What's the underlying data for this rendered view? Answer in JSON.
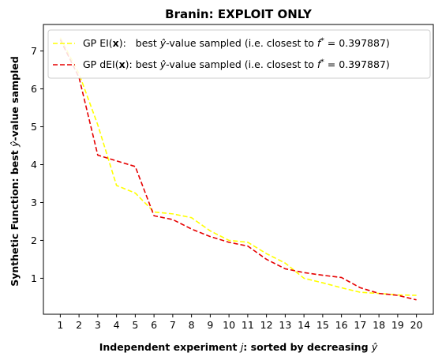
{
  "chart_data": {
    "type": "line",
    "title": "Branin: EXPLOIT ONLY",
    "xlabel": {
      "prefix": "Independent experiment ",
      "var": "j",
      "middle": ": sorted by decreasing ",
      "yhat": "ŷ"
    },
    "ylabel": {
      "prefix": "Synthetic Function: best ",
      "yhat": "ŷ",
      "suffix": "-value sampled"
    },
    "x": [
      1,
      2,
      3,
      4,
      5,
      6,
      7,
      8,
      9,
      10,
      11,
      12,
      13,
      14,
      15,
      16,
      17,
      18,
      19,
      20
    ],
    "xticks": [
      "1",
      "2",
      "3",
      "4",
      "5",
      "6",
      "7",
      "8",
      "9",
      "10",
      "11",
      "12",
      "13",
      "14",
      "15",
      "16",
      "17",
      "18",
      "19",
      "20"
    ],
    "yticks": [
      "1",
      "2",
      "3",
      "4",
      "5",
      "6",
      "7"
    ],
    "yticks_values": [
      1,
      2,
      3,
      4,
      5,
      6,
      7
    ],
    "xlim": [
      0.1,
      20.9
    ],
    "ylim": [
      0.05,
      7.7
    ],
    "grid": false,
    "legend_position": "top-right",
    "series": [
      {
        "name": "GP EI(x): best ŷ-value sampled (i.e. closest to f* = 0.397887)",
        "legend": {
          "gp": "GP EI(",
          "x": "x",
          "close": "):   best ",
          "yhat": "ŷ",
          "mid": "-value sampled (i.e. closest to ",
          "f": "f",
          "star": "*",
          "eq": " = 0.397887)"
        },
        "color": "#ffff00",
        "style": "dashed",
        "values": [
          7.35,
          6.4,
          5.05,
          3.45,
          3.25,
          2.75,
          2.7,
          2.6,
          2.25,
          2.0,
          1.95,
          1.65,
          1.4,
          1.0,
          0.88,
          0.75,
          0.63,
          0.6,
          0.56,
          0.55
        ]
      },
      {
        "name": "GP dEI(x): best ŷ-value sampled (i.e. closest to f* = 0.397887)",
        "legend": {
          "gp": "GP dEI(",
          "x": "x",
          "close": "): best ",
          "yhat": "ŷ",
          "mid": "-value sampled (i.e. closest to ",
          "f": "f",
          "star": "*",
          "eq": " = 0.397887)"
        },
        "color": "#e60000",
        "style": "dashed",
        "values": [
          7.3,
          6.3,
          4.25,
          4.1,
          3.95,
          2.65,
          2.55,
          2.3,
          2.1,
          1.95,
          1.85,
          1.5,
          1.25,
          1.15,
          1.08,
          1.02,
          0.75,
          0.6,
          0.55,
          0.43
        ]
      }
    ]
  }
}
